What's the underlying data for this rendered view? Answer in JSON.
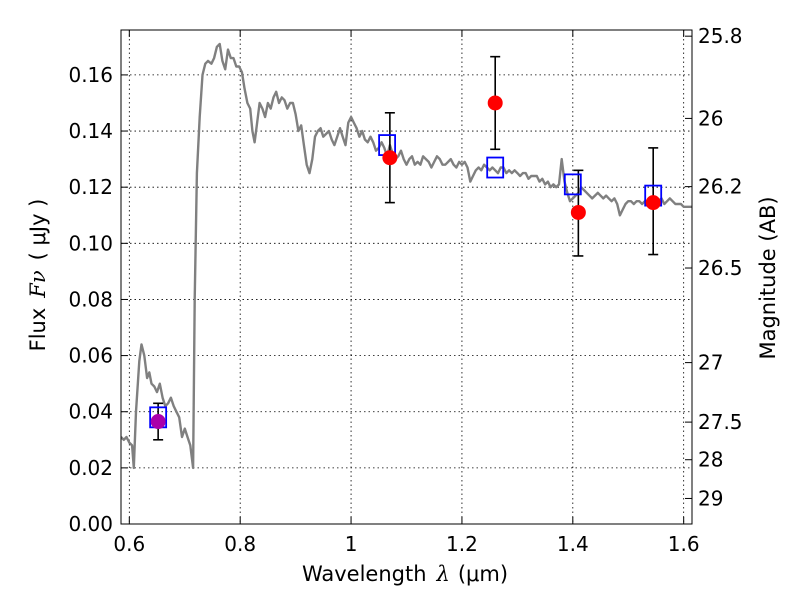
{
  "chart_data": {
    "type": "scatter",
    "xlabel": "Wavelength",
    "xlabel_symbol": "λ",
    "xlabel_unit": "(μm)",
    "ylabel": "Flux",
    "ylabel_symbol": "Fν",
    "ylabel_unit": "( μJy )",
    "y2label": "Magnitude (AB)",
    "xlim": [
      0.585,
      1.615
    ],
    "ylim": [
      0.0,
      0.176
    ],
    "grid": true,
    "grid_style": "dotted",
    "x_ticks": [
      0.6,
      0.8,
      1.0,
      1.2,
      1.4,
      1.6
    ],
    "x_tick_labels": [
      "0.6",
      "0.8",
      "1",
      "1.2",
      "1.4",
      "1.6"
    ],
    "y_ticks": [
      0.0,
      0.02,
      0.04,
      0.06,
      0.08,
      0.1,
      0.12,
      0.14,
      0.16
    ],
    "y_tick_labels": [
      "0.00",
      "0.02",
      "0.04",
      "0.06",
      "0.08",
      "0.10",
      "0.12",
      "0.14",
      "0.16"
    ],
    "y2_ticks": [
      {
        "label": "25.8",
        "flux": 0.1738
      },
      {
        "label": "26",
        "flux": 0.1445
      },
      {
        "label": "26.2",
        "flux": 0.1202
      },
      {
        "label": "26.5",
        "flux": 0.0912
      },
      {
        "label": "27",
        "flux": 0.0575
      },
      {
        "label": "27.5",
        "flux": 0.0363
      },
      {
        "label": "28",
        "flux": 0.0229
      },
      {
        "label": "29",
        "flux": 0.0091
      }
    ],
    "series": [
      {
        "kind": "line",
        "color": "#808080",
        "points": [
          [
            0.585,
            0.031
          ],
          [
            0.59,
            0.03
          ],
          [
            0.595,
            0.031
          ],
          [
            0.6,
            0.029
          ],
          [
            0.605,
            0.028
          ],
          [
            0.608,
            0.02
          ],
          [
            0.612,
            0.04
          ],
          [
            0.618,
            0.058
          ],
          [
            0.622,
            0.064
          ],
          [
            0.627,
            0.06
          ],
          [
            0.632,
            0.052
          ],
          [
            0.636,
            0.054
          ],
          [
            0.64,
            0.05
          ],
          [
            0.645,
            0.049
          ],
          [
            0.65,
            0.047
          ],
          [
            0.655,
            0.05
          ],
          [
            0.66,
            0.045
          ],
          [
            0.665,
            0.042
          ],
          [
            0.67,
            0.043
          ],
          [
            0.675,
            0.045
          ],
          [
            0.68,
            0.042
          ],
          [
            0.685,
            0.04
          ],
          [
            0.69,
            0.038
          ],
          [
            0.695,
            0.031
          ],
          [
            0.7,
            0.034
          ],
          [
            0.705,
            0.031
          ],
          [
            0.71,
            0.028
          ],
          [
            0.715,
            0.02
          ],
          [
            0.718,
            0.08
          ],
          [
            0.722,
            0.125
          ],
          [
            0.727,
            0.145
          ],
          [
            0.732,
            0.16
          ],
          [
            0.737,
            0.164
          ],
          [
            0.742,
            0.165
          ],
          [
            0.748,
            0.164
          ],
          [
            0.753,
            0.166
          ],
          [
            0.758,
            0.17
          ],
          [
            0.763,
            0.171
          ],
          [
            0.768,
            0.165
          ],
          [
            0.773,
            0.162
          ],
          [
            0.778,
            0.169
          ],
          [
            0.783,
            0.166
          ],
          [
            0.788,
            0.166
          ],
          [
            0.793,
            0.163
          ],
          [
            0.798,
            0.163
          ],
          [
            0.803,
            0.161
          ],
          [
            0.808,
            0.155
          ],
          [
            0.813,
            0.15
          ],
          [
            0.818,
            0.148
          ],
          [
            0.822,
            0.14
          ],
          [
            0.826,
            0.136
          ],
          [
            0.83,
            0.142
          ],
          [
            0.835,
            0.15
          ],
          [
            0.84,
            0.148
          ],
          [
            0.845,
            0.145
          ],
          [
            0.85,
            0.15
          ],
          [
            0.855,
            0.148
          ],
          [
            0.86,
            0.152
          ],
          [
            0.865,
            0.154
          ],
          [
            0.87,
            0.15
          ],
          [
            0.875,
            0.152
          ],
          [
            0.88,
            0.151
          ],
          [
            0.885,
            0.148
          ],
          [
            0.89,
            0.15
          ],
          [
            0.895,
            0.15
          ],
          [
            0.9,
            0.146
          ],
          [
            0.905,
            0.14
          ],
          [
            0.91,
            0.142
          ],
          [
            0.915,
            0.135
          ],
          [
            0.92,
            0.128
          ],
          [
            0.925,
            0.125
          ],
          [
            0.93,
            0.13
          ],
          [
            0.935,
            0.138
          ],
          [
            0.94,
            0.14
          ],
          [
            0.945,
            0.141
          ],
          [
            0.95,
            0.138
          ],
          [
            0.955,
            0.139
          ],
          [
            0.96,
            0.14
          ],
          [
            0.965,
            0.137
          ],
          [
            0.97,
            0.135
          ],
          [
            0.975,
            0.138
          ],
          [
            0.98,
            0.141
          ],
          [
            0.985,
            0.138
          ],
          [
            0.99,
            0.135
          ],
          [
            0.995,
            0.143
          ],
          [
            1.0,
            0.145
          ],
          [
            1.005,
            0.143
          ],
          [
            1.01,
            0.141
          ],
          [
            1.015,
            0.138
          ],
          [
            1.02,
            0.14
          ],
          [
            1.025,
            0.137
          ],
          [
            1.03,
            0.136
          ],
          [
            1.035,
            0.138
          ],
          [
            1.04,
            0.136
          ],
          [
            1.045,
            0.133
          ],
          [
            1.05,
            0.134
          ],
          [
            1.055,
            0.136
          ],
          [
            1.06,
            0.134
          ],
          [
            1.065,
            0.131
          ],
          [
            1.07,
            0.135
          ],
          [
            1.075,
            0.132
          ],
          [
            1.08,
            0.13
          ],
          [
            1.085,
            0.131
          ],
          [
            1.09,
            0.133
          ],
          [
            1.095,
            0.13
          ],
          [
            1.1,
            0.128
          ],
          [
            1.105,
            0.13
          ],
          [
            1.11,
            0.131
          ],
          [
            1.115,
            0.128
          ],
          [
            1.12,
            0.129
          ],
          [
            1.125,
            0.128
          ],
          [
            1.13,
            0.131
          ],
          [
            1.135,
            0.13
          ],
          [
            1.14,
            0.129
          ],
          [
            1.145,
            0.127
          ],
          [
            1.15,
            0.129
          ],
          [
            1.155,
            0.131
          ],
          [
            1.16,
            0.13
          ],
          [
            1.165,
            0.128
          ],
          [
            1.17,
            0.128
          ],
          [
            1.175,
            0.129
          ],
          [
            1.18,
            0.13
          ],
          [
            1.185,
            0.128
          ],
          [
            1.19,
            0.127
          ],
          [
            1.195,
            0.129
          ],
          [
            1.2,
            0.128
          ],
          [
            1.205,
            0.129
          ],
          [
            1.21,
            0.127
          ],
          [
            1.215,
            0.122
          ],
          [
            1.22,
            0.124
          ],
          [
            1.225,
            0.126
          ],
          [
            1.23,
            0.127
          ],
          [
            1.235,
            0.126
          ],
          [
            1.24,
            0.128
          ],
          [
            1.245,
            0.127
          ],
          [
            1.25,
            0.126
          ],
          [
            1.255,
            0.127
          ],
          [
            1.26,
            0.126
          ],
          [
            1.265,
            0.125
          ],
          [
            1.27,
            0.127
          ],
          [
            1.275,
            0.127
          ],
          [
            1.28,
            0.125
          ],
          [
            1.285,
            0.126
          ],
          [
            1.29,
            0.125
          ],
          [
            1.295,
            0.126
          ],
          [
            1.3,
            0.125
          ],
          [
            1.305,
            0.124
          ],
          [
            1.31,
            0.125
          ],
          [
            1.315,
            0.125
          ],
          [
            1.32,
            0.123
          ],
          [
            1.325,
            0.124
          ],
          [
            1.33,
            0.124
          ],
          [
            1.335,
            0.124
          ],
          [
            1.34,
            0.122
          ],
          [
            1.345,
            0.123
          ],
          [
            1.35,
            0.121
          ],
          [
            1.355,
            0.122
          ],
          [
            1.36,
            0.12
          ],
          [
            1.365,
            0.121
          ],
          [
            1.37,
            0.12
          ],
          [
            1.375,
            0.121
          ],
          [
            1.38,
            0.13
          ],
          [
            1.385,
            0.122
          ],
          [
            1.39,
            0.118
          ],
          [
            1.395,
            0.115
          ],
          [
            1.4,
            0.116
          ],
          [
            1.405,
            0.117
          ],
          [
            1.41,
            0.118
          ],
          [
            1.415,
            0.12
          ],
          [
            1.42,
            0.119
          ],
          [
            1.425,
            0.118
          ],
          [
            1.43,
            0.117
          ],
          [
            1.435,
            0.116
          ],
          [
            1.44,
            0.117
          ],
          [
            1.445,
            0.118
          ],
          [
            1.45,
            0.117
          ],
          [
            1.455,
            0.116
          ],
          [
            1.46,
            0.117
          ],
          [
            1.465,
            0.116
          ],
          [
            1.47,
            0.115
          ],
          [
            1.475,
            0.116
          ],
          [
            1.48,
            0.114
          ],
          [
            1.485,
            0.11
          ],
          [
            1.49,
            0.112
          ],
          [
            1.495,
            0.114
          ],
          [
            1.5,
            0.115
          ],
          [
            1.505,
            0.115
          ],
          [
            1.51,
            0.114
          ],
          [
            1.515,
            0.115
          ],
          [
            1.52,
            0.115
          ],
          [
            1.525,
            0.114
          ],
          [
            1.53,
            0.115
          ],
          [
            1.535,
            0.114
          ],
          [
            1.54,
            0.114
          ],
          [
            1.545,
            0.113
          ],
          [
            1.55,
            0.115
          ],
          [
            1.555,
            0.115
          ],
          [
            1.56,
            0.116
          ],
          [
            1.565,
            0.114
          ],
          [
            1.57,
            0.115
          ],
          [
            1.575,
            0.116
          ],
          [
            1.58,
            0.115
          ],
          [
            1.585,
            0.114
          ],
          [
            1.59,
            0.114
          ],
          [
            1.595,
            0.114
          ],
          [
            1.6,
            0.113
          ],
          [
            1.605,
            0.113
          ],
          [
            1.61,
            0.113
          ],
          [
            1.615,
            0.113
          ]
        ]
      },
      {
        "kind": "model_photometry",
        "marker": "open-square",
        "color": "#0000ff",
        "points": [
          [
            0.652,
            0.038
          ],
          [
            1.065,
            0.135
          ],
          [
            1.26,
            0.127
          ],
          [
            1.4,
            0.121
          ],
          [
            1.545,
            0.117
          ]
        ]
      },
      {
        "kind": "observed_photometry",
        "marker": "filled-circle",
        "color": "#ff0000",
        "highlight_color": "#aa00aa",
        "points": [
          {
            "x": 0.652,
            "y": 0.0365,
            "yerr_lo": 0.0065,
            "yerr_hi": 0.0065,
            "color": "#aa00aa"
          },
          {
            "x": 1.07,
            "y": 0.1305,
            "yerr_lo": 0.016,
            "yerr_hi": 0.016,
            "color": "#ff0000"
          },
          {
            "x": 1.26,
            "y": 0.15,
            "yerr_lo": 0.0165,
            "yerr_hi": 0.0165,
            "color": "#ff0000"
          },
          {
            "x": 1.41,
            "y": 0.111,
            "yerr_lo": 0.0155,
            "yerr_hi": 0.015,
            "color": "#ff0000"
          },
          {
            "x": 1.545,
            "y": 0.1145,
            "yerr_lo": 0.0185,
            "yerr_hi": 0.0195,
            "color": "#ff0000"
          }
        ]
      }
    ]
  }
}
